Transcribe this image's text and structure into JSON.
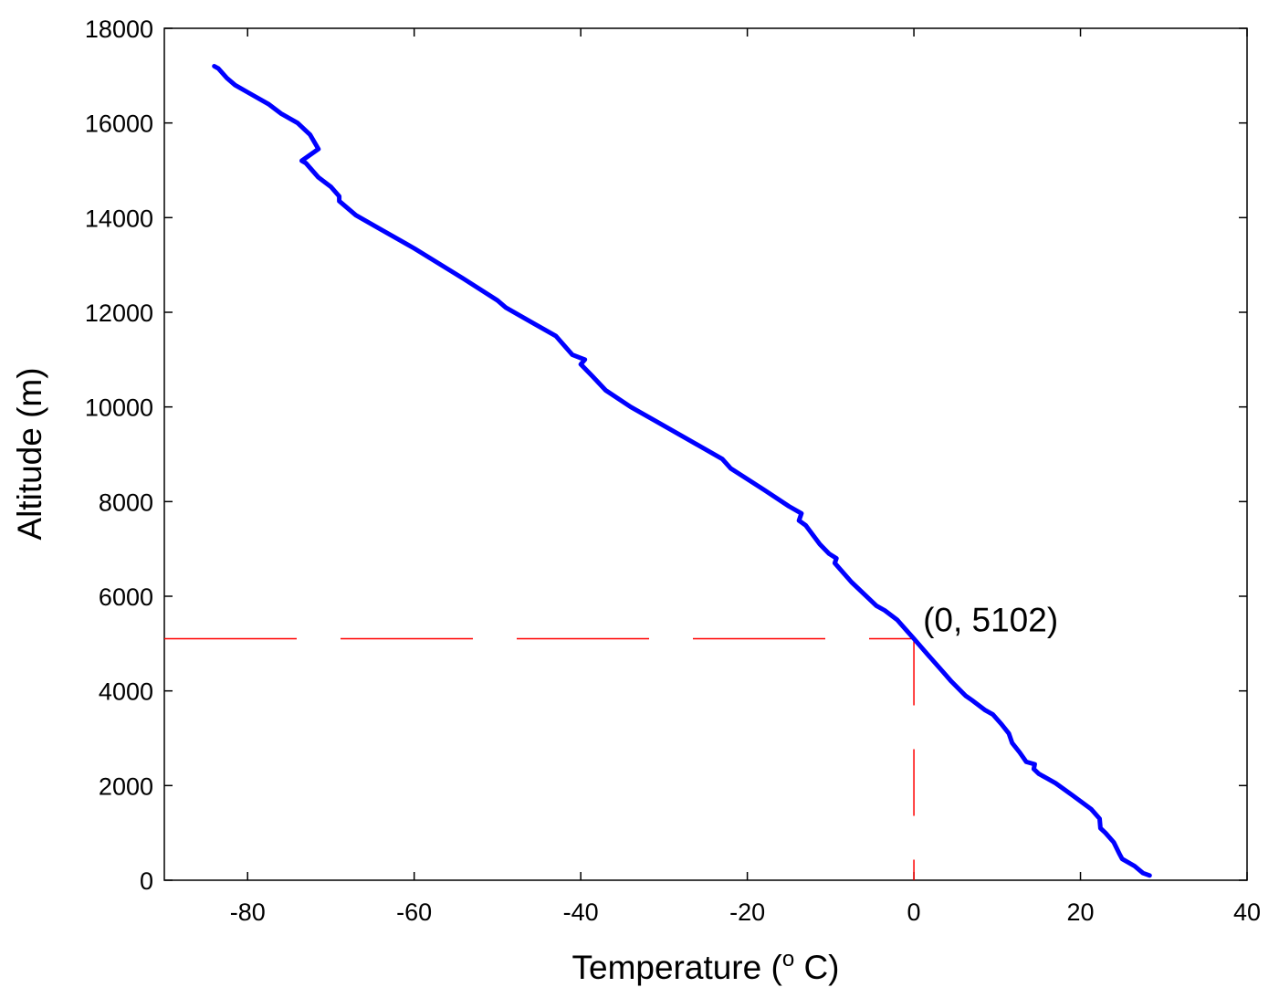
{
  "chart_data": {
    "type": "line",
    "title": "",
    "xlabel": "Temperature (",
    "xlabel_superscript": "o",
    "xlabel_suffix": " C)",
    "ylabel": "Altitude (m)",
    "xlim": [
      -90,
      40
    ],
    "ylim": [
      0,
      18000
    ],
    "x_ticks": [
      -80,
      -60,
      -40,
      -20,
      0,
      20,
      40
    ],
    "y_ticks": [
      0,
      2000,
      4000,
      6000,
      8000,
      10000,
      12000,
      14000,
      16000,
      18000
    ],
    "grid": false,
    "series": [
      {
        "color": "#0000ff",
        "points": [
          [
            28.3,
            100
          ],
          [
            27.5,
            150
          ],
          [
            26.5,
            300
          ],
          [
            25,
            450
          ],
          [
            24.7,
            550
          ],
          [
            24,
            800
          ],
          [
            23,
            1000
          ],
          [
            22.4,
            1100
          ],
          [
            22.3,
            1300
          ],
          [
            21.3,
            1500
          ],
          [
            19,
            1800
          ],
          [
            17,
            2050
          ],
          [
            15,
            2250
          ],
          [
            14.4,
            2350
          ],
          [
            14.5,
            2450
          ],
          [
            13.5,
            2500
          ],
          [
            12.7,
            2700
          ],
          [
            11.8,
            2900
          ],
          [
            11.4,
            3100
          ],
          [
            10.5,
            3300
          ],
          [
            9.5,
            3500
          ],
          [
            8.5,
            3600
          ],
          [
            7,
            3800
          ],
          [
            6.2,
            3900
          ],
          [
            4.5,
            4200
          ],
          [
            3.5,
            4400
          ],
          [
            2,
            4700
          ],
          [
            1,
            4900
          ],
          [
            0,
            5102
          ],
          [
            -1,
            5300
          ],
          [
            -2,
            5500
          ],
          [
            -3.5,
            5700
          ],
          [
            -4.5,
            5800
          ],
          [
            -7.5,
            6300
          ],
          [
            -9.5,
            6700
          ],
          [
            -9.3,
            6800
          ],
          [
            -10.2,
            6900
          ],
          [
            -11.3,
            7100
          ],
          [
            -13,
            7500
          ],
          [
            -13.8,
            7600
          ],
          [
            -13.5,
            7750
          ],
          [
            -15,
            7900
          ],
          [
            -18,
            8250
          ],
          [
            -22,
            8700
          ],
          [
            -23,
            8900
          ],
          [
            -27,
            9300
          ],
          [
            -31,
            9700
          ],
          [
            -34,
            10000
          ],
          [
            -37,
            10350
          ],
          [
            -38.6,
            10650
          ],
          [
            -40,
            10900
          ],
          [
            -39.5,
            11000
          ],
          [
            -41,
            11100
          ],
          [
            -43,
            11500
          ],
          [
            -46,
            11800
          ],
          [
            -49,
            12100
          ],
          [
            -50,
            12250
          ],
          [
            -54,
            12700
          ],
          [
            -60,
            13350
          ],
          [
            -61,
            13450
          ],
          [
            -64,
            13750
          ],
          [
            -67,
            14050
          ],
          [
            -69,
            14350
          ],
          [
            -69,
            14450
          ],
          [
            -70,
            14650
          ],
          [
            -71.5,
            14850
          ],
          [
            -73,
            15150
          ],
          [
            -73.5,
            15200
          ],
          [
            -71.5,
            15450
          ],
          [
            -72.5,
            15750
          ],
          [
            -74,
            16000
          ],
          [
            -76,
            16200
          ],
          [
            -77.5,
            16400
          ],
          [
            -80,
            16650
          ],
          [
            -81.5,
            16800
          ],
          [
            -82.5,
            16950
          ],
          [
            -83.5,
            17150
          ],
          [
            -84,
            17200
          ]
        ]
      }
    ],
    "reference_lines": {
      "color": "#ff0000",
      "horizontal_y": 5102,
      "vertical_x": 0
    },
    "annotations": [
      {
        "text": "(0, 5102)",
        "x": 0,
        "y": 5102
      }
    ]
  }
}
